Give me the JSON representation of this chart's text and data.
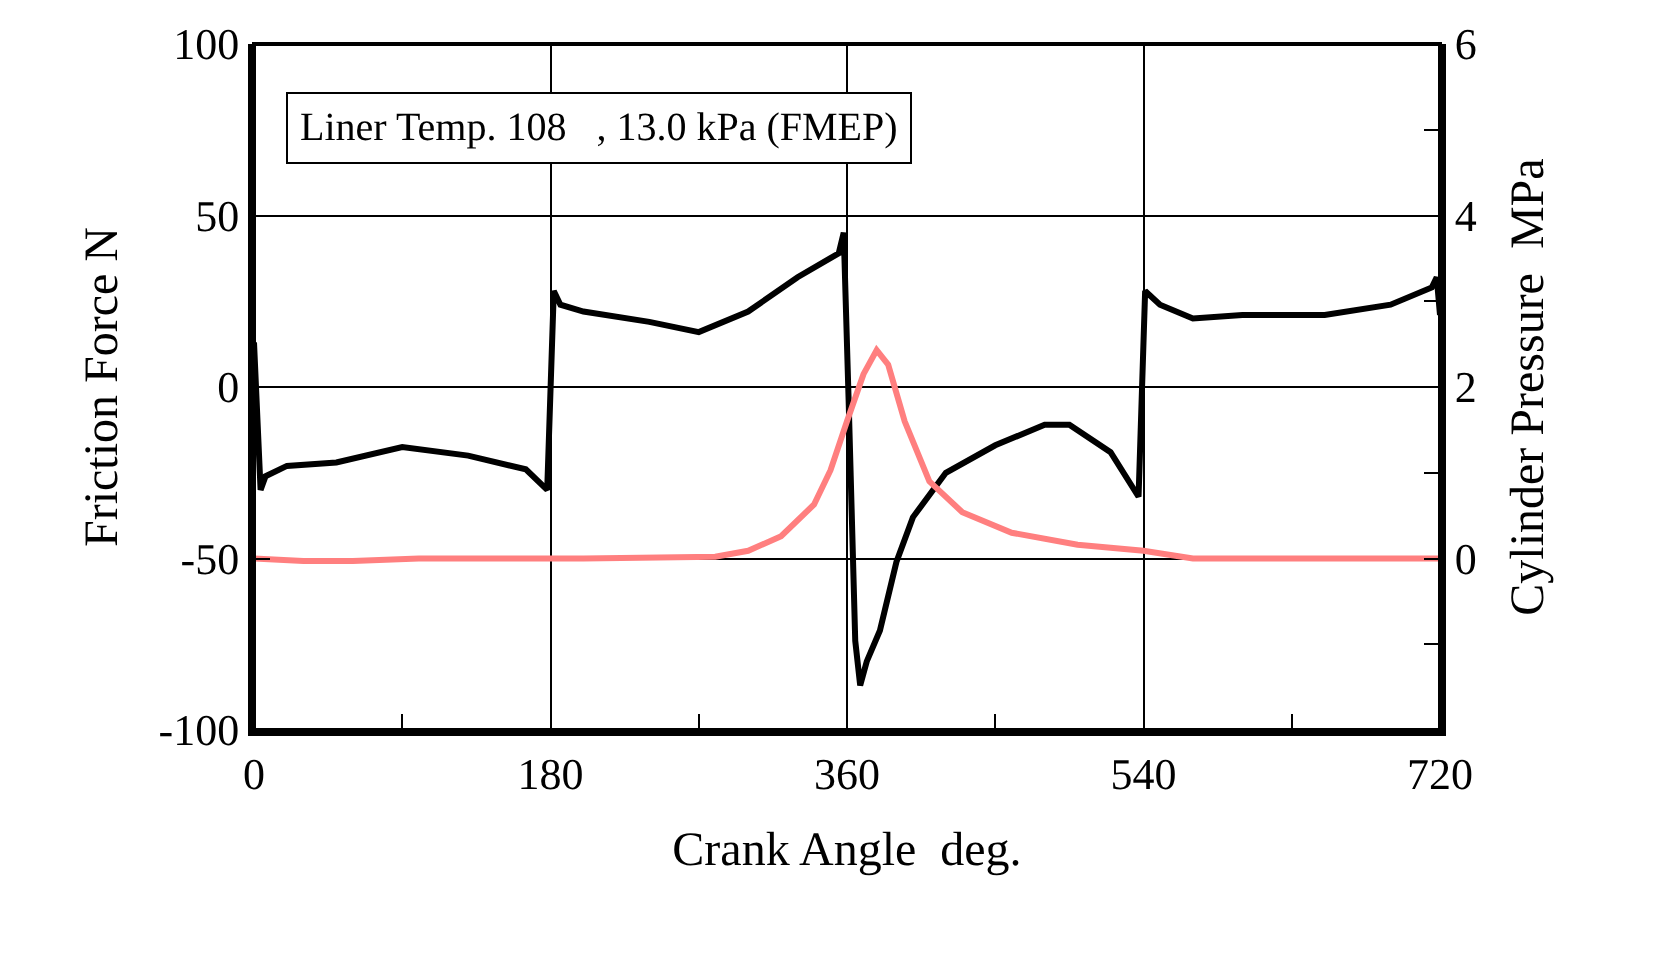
{
  "chart_data": {
    "type": "line",
    "xlabel": "Crank Angle  deg.",
    "ylabel": "Friction Force N",
    "y2label": "Cylinder Pressure  MPa",
    "annotations": [
      "Liner Temp. 108   , 13.0 kPa (FMEP)"
    ],
    "xlim": [
      0,
      720
    ],
    "xticks": [
      0,
      180,
      360,
      540,
      720
    ],
    "ylim": [
      -100,
      100
    ],
    "yticks": [
      -100,
      -50,
      0,
      50,
      100
    ],
    "y2lim": [
      -2,
      6
    ],
    "y2ticks": [
      0,
      2,
      4,
      6
    ],
    "grid": true,
    "marker": "none",
    "line_style": "solid",
    "series": [
      {
        "color": "#000000",
        "x": [
          0,
          4,
          7,
          20,
          50,
          90,
          130,
          165,
          178,
          182,
          186,
          200,
          240,
          270,
          300,
          330,
          355,
          358,
          361,
          365,
          368,
          372,
          380,
          390,
          400,
          420,
          450,
          480,
          495,
          520,
          537,
          541,
          550,
          570,
          600,
          650,
          690,
          715,
          718,
          720
        ],
        "values": [
          13,
          -30,
          -26,
          -23,
          -22,
          -17.5,
          -20,
          -24,
          -30,
          28,
          24,
          22,
          19,
          16,
          22,
          32,
          39,
          45,
          -4,
          -74,
          -87,
          -80,
          -71,
          -51,
          -38,
          -25,
          -17,
          -11,
          -11,
          -19,
          -32,
          28,
          24,
          20,
          21,
          21,
          24,
          29,
          32,
          21
        ]
      },
      {
        "color": "#ff7f7f",
        "axis": "y2",
        "x": [
          0,
          30,
          60,
          100,
          200,
          280,
          300,
          320,
          340,
          350,
          360,
          370,
          378,
          385,
          395,
          410,
          430,
          460,
          500,
          540,
          570,
          620,
          720
        ],
        "values": [
          0,
          -0.03,
          -0.03,
          0,
          0,
          0.02,
          0.09,
          0.26,
          0.63,
          1.03,
          1.6,
          2.15,
          2.43,
          2.26,
          1.6,
          0.9,
          0.54,
          0.3,
          0.16,
          0.09,
          0,
          0,
          0
        ]
      }
    ]
  }
}
